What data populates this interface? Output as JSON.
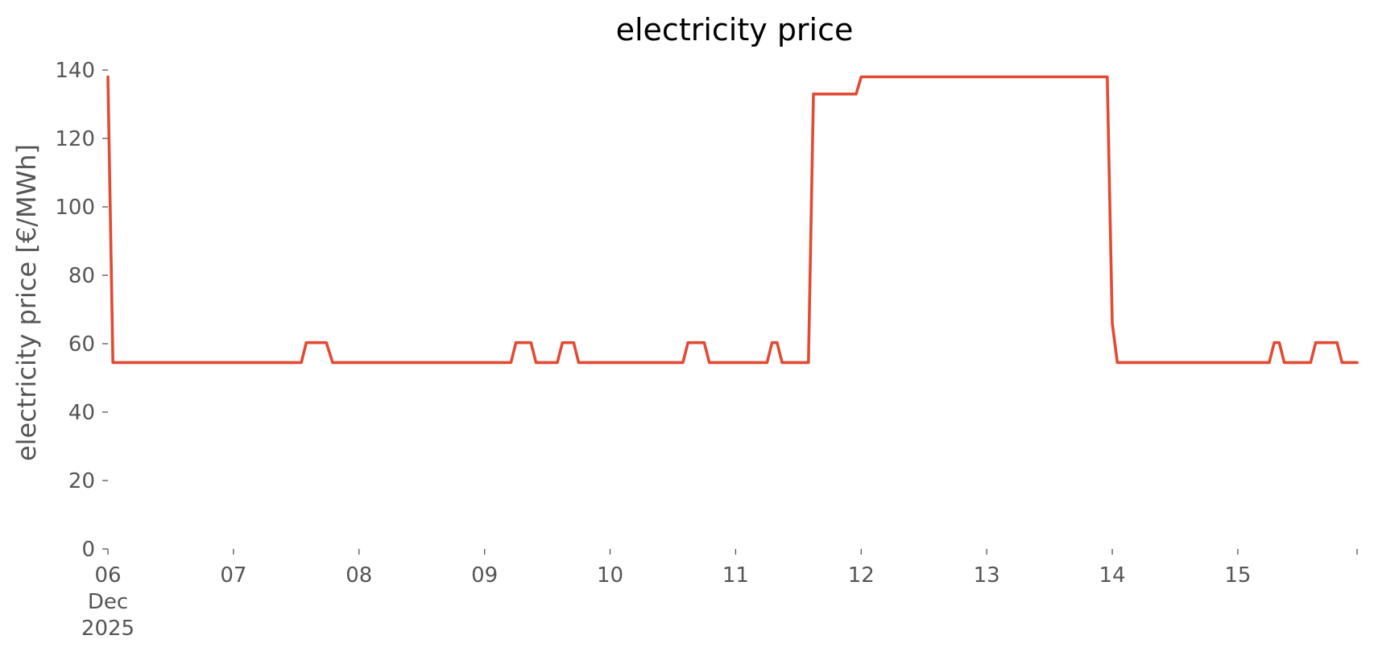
{
  "chart_data": {
    "type": "line",
    "title": "electricity price",
    "xlabel": "",
    "ylabel": "electricity price [€/MWh]",
    "ylim": [
      0,
      140
    ],
    "yticks": [
      0,
      20,
      40,
      60,
      80,
      100,
      120,
      140
    ],
    "x_unit": "day of December 2025",
    "xlim": [
      6,
      15.95
    ],
    "xticks": [
      {
        "day": 6,
        "lines": [
          "06",
          "Dec",
          "2025"
        ]
      },
      {
        "day": 7,
        "lines": [
          "07"
        ]
      },
      {
        "day": 8,
        "lines": [
          "08"
        ]
      },
      {
        "day": 9,
        "lines": [
          "09"
        ]
      },
      {
        "day": 10,
        "lines": [
          "10"
        ]
      },
      {
        "day": 11,
        "lines": [
          "11"
        ]
      },
      {
        "day": 12,
        "lines": [
          "12"
        ]
      },
      {
        "day": 13,
        "lines": [
          "13"
        ]
      },
      {
        "day": 14,
        "lines": [
          "14"
        ]
      },
      {
        "day": 15,
        "lines": [
          "15"
        ]
      },
      {
        "day": 15.95,
        "lines": [
          ""
        ]
      }
    ],
    "grid": false,
    "color": "#e24a33",
    "series": [
      {
        "x": [
          6.0,
          6.04,
          7.54,
          7.58,
          7.74,
          7.79,
          9.21,
          9.25,
          9.37,
          9.41,
          9.58,
          9.62,
          9.71,
          9.75,
          10.58,
          10.62,
          10.75,
          10.79,
          11.25,
          11.29,
          11.33,
          11.37,
          11.58,
          11.62,
          11.96,
          12.0,
          13.96,
          14.0,
          14.04,
          15.25,
          15.29,
          15.33,
          15.37,
          15.58,
          15.62,
          15.79,
          15.83,
          15.95
        ],
        "y": [
          138.0,
          54.5,
          54.5,
          60.3,
          60.3,
          54.5,
          54.5,
          60.3,
          60.3,
          54.5,
          54.5,
          60.3,
          60.3,
          54.5,
          54.5,
          60.3,
          60.3,
          54.5,
          54.5,
          60.3,
          60.3,
          54.5,
          54.5,
          133.0,
          133.0,
          138.0,
          138.0,
          66.0,
          54.5,
          54.5,
          60.3,
          60.3,
          54.5,
          54.5,
          60.3,
          60.3,
          54.5,
          54.5
        ]
      }
    ]
  }
}
